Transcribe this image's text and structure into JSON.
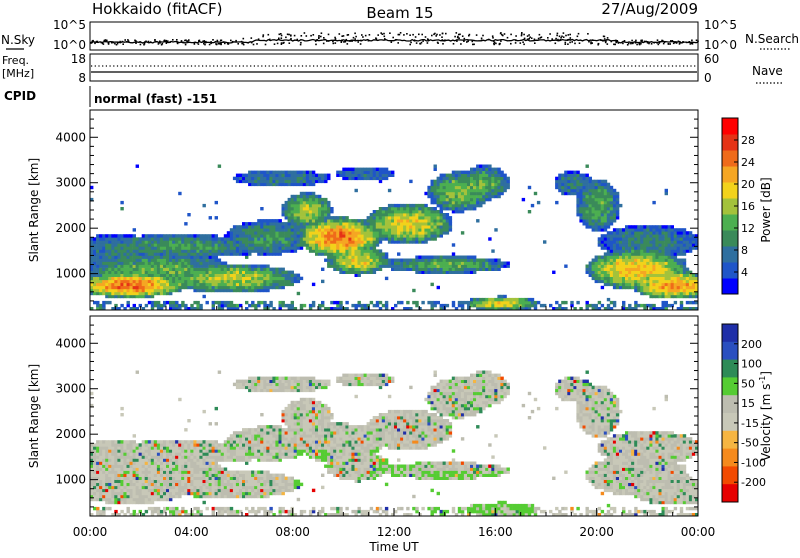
{
  "header": {
    "station": "Hokkaido (fitACF)",
    "beam": "Beam 15",
    "date": "27/Aug/2009"
  },
  "colors": {
    "power": [
      "#0000ff",
      "#1f55c8",
      "#2f6f9f",
      "#3a8a5a",
      "#4caf50",
      "#a3c23b",
      "#f2d21b",
      "#f5a623",
      "#ef6b1a",
      "#e53316",
      "#ff0000"
    ],
    "velocity": [
      "#e60000",
      "#f24a00",
      "#f58a1c",
      "#f5b542",
      "#c8c8b8",
      "#bdbdb0",
      "#55cc33",
      "#2e8b57",
      "#2a4fbf",
      "#1f2fa8"
    ],
    "gray": "#c0c0b4"
  },
  "chart_data": [
    {
      "type": "line",
      "name": "noise-panel",
      "left_labels": [
        "N.Sky"
      ],
      "right_labels": [
        "N.Search"
      ],
      "y_ticks_left": [
        "10^5",
        "10^0"
      ],
      "y_ticks_right": [
        "10^5",
        "10^0"
      ]
    },
    {
      "type": "line",
      "name": "freq-panel",
      "left_labels": [
        "Freq.",
        "[MHz]"
      ],
      "right_labels": [
        "Nave"
      ],
      "y_ticks_left": [
        "18",
        "8"
      ],
      "y_ticks_right": [
        "60",
        "0"
      ]
    },
    {
      "type": "table",
      "name": "cpid-panel",
      "label": "CPID",
      "value": "normal (fast) -151"
    },
    {
      "type": "heatmap",
      "name": "power-panel",
      "xlabel": "",
      "ylabel": "Slant Range [km]",
      "y_ticks": [
        "1000",
        "2000",
        "3000",
        "4000"
      ],
      "ylim": [
        200,
        4600
      ],
      "colorbar_label": "Power [dB]",
      "colorbar_ticks": [
        "28",
        "24",
        "20",
        "16",
        "12",
        "8",
        "4"
      ],
      "colorbar_range": [
        0,
        32
      ]
    },
    {
      "type": "heatmap",
      "name": "velocity-panel",
      "xlabel": "Time UT",
      "ylabel": "Slant Range [km]",
      "y_ticks": [
        "1000",
        "2000",
        "3000",
        "4000"
      ],
      "ylim": [
        200,
        4600
      ],
      "x_ticks": [
        "00:00",
        "04:00",
        "08:00",
        "12:00",
        "16:00",
        "20:00",
        "00:00"
      ],
      "colorbar_label": "Velocity [m s",
      "colorbar_label_sup": "-1",
      "colorbar_label_end": "]",
      "colorbar_ticks": [
        "200",
        "100",
        "50",
        "15",
        "-15",
        "-50",
        "-100",
        "-200"
      ]
    }
  ]
}
